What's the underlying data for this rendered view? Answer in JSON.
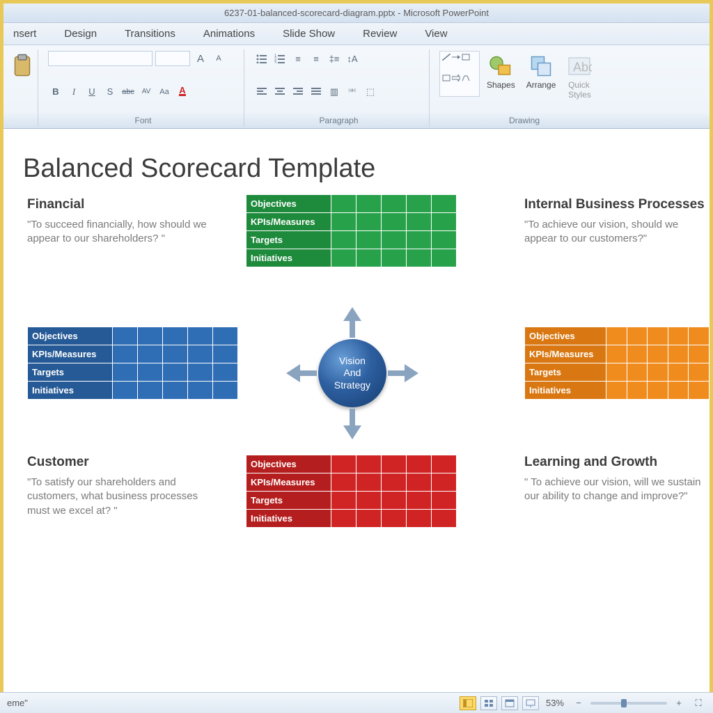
{
  "window": {
    "title": "6237-01-balanced-scorecard-diagram.pptx - Microsoft PowerPoint"
  },
  "tabs": [
    "nsert",
    "Design",
    "Transitions",
    "Animations",
    "Slide Show",
    "Review",
    "View"
  ],
  "ribbon": {
    "clipboard_paste": "Paste",
    "font_group": "Font",
    "paragraph_group": "Paragraph",
    "drawing_group": "Drawing",
    "shapes": "Shapes",
    "arrange": "Arrange",
    "quick_styles": "Quick\nStyles",
    "font_controls": [
      "B",
      "I",
      "U",
      "S",
      "abc",
      "AV",
      "Aa"
    ],
    "size_up": "A",
    "size_down": "A"
  },
  "slide": {
    "title": "Balanced Scorecard Template",
    "center": "Vision\nAnd\nStrategy",
    "row_labels": [
      "Objectives",
      "KPIs/Measures",
      "Targets",
      "Initiatives"
    ],
    "grid_cols": 5,
    "quadrants": {
      "financial": {
        "label": "Financial",
        "text": "\"To succeed financially, how should we appear to our shareholders? \"",
        "color": "#27a24a",
        "header_color": "#1e8a3c"
      },
      "internal": {
        "label": "Internal Business Processes",
        "text": "\"To achieve our vision, should we appear to our customers?\"",
        "color": "#f08c1e",
        "header_color": "#d97812"
      },
      "customer_table_color": "#2f6db5",
      "customer_header_color": "#265a96",
      "customer": {
        "label": "Customer",
        "text": "\"To satisfy our shareholders and customers, what business processes must we excel at? \""
      },
      "learning": {
        "label": "Learning and Growth",
        "text": "\" To achieve our vision, will we sustain our ability to change and improve?\"",
        "color": "#d02424",
        "header_color": "#b51e1e"
      }
    }
  },
  "status": {
    "left": "eme\"",
    "zoom": "53%",
    "zoom_thumb_pct": 40
  },
  "colors": {
    "frame": "#e8c957",
    "sphere_dark": "#163d70",
    "sphere_mid": "#2d5fa0",
    "arrow": "#8aa4bf"
  }
}
